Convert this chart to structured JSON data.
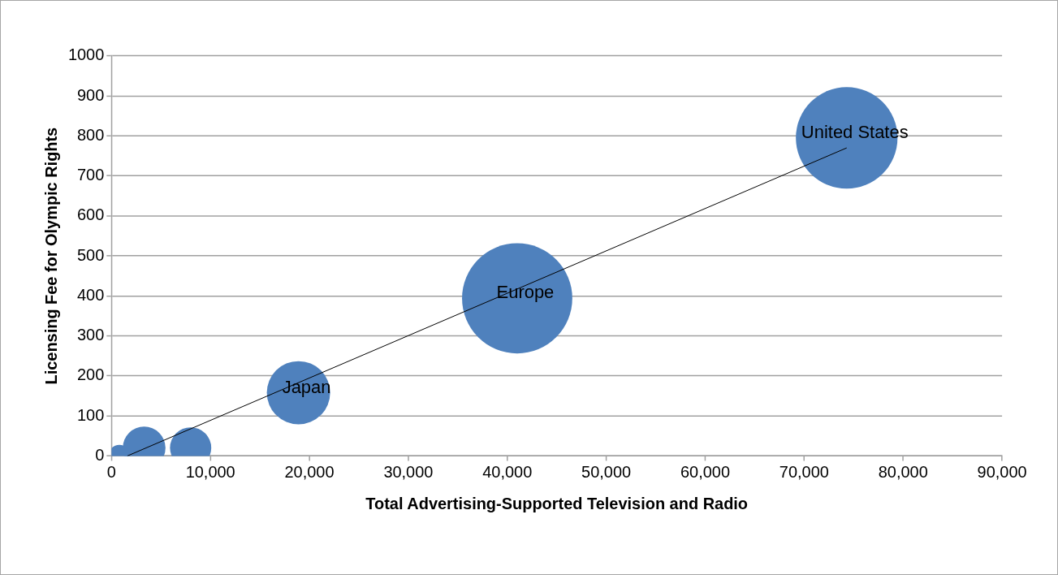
{
  "chart_data": {
    "type": "bubble",
    "xlabel": "Total Advertising-Supported Television and Radio",
    "ylabel": "Licensing Fee for Olympic Rights",
    "xlim": [
      0,
      90000
    ],
    "xticks": [
      {
        "value": 0,
        "label": "0"
      },
      {
        "value": 10000,
        "label": "10,000"
      },
      {
        "value": 20000,
        "label": "20,000"
      },
      {
        "value": 30000,
        "label": "30,000"
      },
      {
        "value": 40000,
        "label": "40,000"
      },
      {
        "value": 50000,
        "label": "50,000"
      },
      {
        "value": 60000,
        "label": "60,000"
      },
      {
        "value": 70000,
        "label": "70,000"
      },
      {
        "value": 80000,
        "label": "80,000"
      },
      {
        "value": 90000,
        "label": "90,000"
      }
    ],
    "ylim": [
      0,
      1000
    ],
    "yticks": [
      0,
      100,
      200,
      300,
      400,
      500,
      600,
      700,
      800,
      900,
      1000
    ],
    "grid": "y",
    "legend": false,
    "series": [
      {
        "color": "#4f81bd",
        "x": [
          800,
          3300,
          8000,
          18900,
          41000,
          74300
        ],
        "values": [
          0,
          20,
          20,
          158,
          394,
          795
        ],
        "sizes": [
          0.04,
          0.15,
          0.14,
          0.33,
          1,
          0.85
        ]
      },
      {
        "type": "line",
        "color": "#000000",
        "x": [
          1600,
          74300
        ],
        "values": [
          0,
          770
        ]
      }
    ],
    "annotations": [
      {
        "text": "United States",
        "x": 74300,
        "y": 795
      },
      {
        "text": "Europe",
        "x": 41000,
        "y": 394
      },
      {
        "text": "Japan",
        "x": 18900,
        "y": 158
      }
    ]
  }
}
